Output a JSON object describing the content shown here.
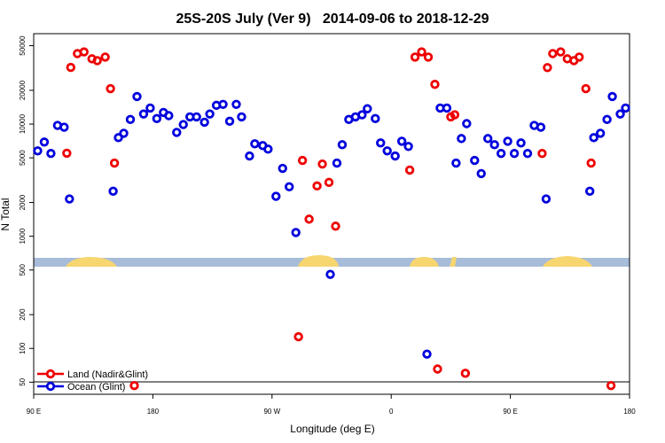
{
  "chart_data": {
    "type": "scatter",
    "title": "25S-20S July (Ver 9)   2014-09-06 to 2018-12-29",
    "x_label": "Longitude (deg E)",
    "y_label": "N Total",
    "log_y": true,
    "legend": "lower left",
    "xlim": [
      90,
      540
    ],
    "ylim": [
      39,
      64000
    ],
    "xticks": [
      {
        "value": 90,
        "label": "90 E"
      },
      {
        "value": 180,
        "label": "180"
      },
      {
        "value": 270,
        "label": "90 W"
      },
      {
        "value": 360,
        "label": "0"
      },
      {
        "value": 450,
        "label": "90 E"
      },
      {
        "value": 540,
        "label": "180"
      }
    ],
    "yticks": [
      50,
      100,
      200,
      500,
      1000,
      2000,
      5000,
      10000,
      20000,
      50000
    ],
    "series": [
      {
        "name": "Land (Nadir&Glint)",
        "color": "#ee0000",
        "x": [
          115,
          118,
          123,
          128,
          134,
          138,
          144,
          148,
          151,
          166,
          290,
          293,
          298,
          304,
          308,
          313,
          318,
          374,
          378,
          383,
          388,
          393,
          395,
          405,
          408,
          416,
          474,
          478,
          482,
          488,
          493,
          498,
          502,
          507,
          511,
          526
        ],
        "values": [
          5500,
          32000,
          42500,
          44000,
          38200,
          36800,
          39600,
          20700,
          4490,
          46.6,
          127,
          4740,
          1420,
          2810,
          4400,
          3020,
          1230,
          3890,
          39600,
          44000,
          39600,
          22600,
          65.5,
          11600,
          12100,
          60,
          5470,
          31900,
          42500,
          44000,
          38200,
          36800,
          39600,
          20700,
          4490,
          46.6
        ]
      },
      {
        "name": "Ocean (Glint)",
        "color": "#0000dd",
        "x": [
          93,
          98,
          103,
          108,
          113,
          117,
          150,
          154,
          158,
          163,
          168,
          173,
          178,
          183,
          188,
          192,
          198,
          203,
          208,
          213,
          219,
          223,
          228,
          233,
          238,
          243,
          247,
          253,
          257,
          263,
          267,
          273,
          278,
          283,
          288,
          314,
          319,
          323,
          328,
          333,
          338,
          342,
          348,
          352,
          357,
          363,
          368,
          373,
          387,
          397,
          402,
          409,
          413,
          417,
          423,
          428,
          433,
          438,
          443,
          448,
          453,
          458,
          463,
          468,
          473,
          477,
          510,
          513,
          518,
          523,
          527,
          533,
          537
        ],
        "values": [
          5770,
          6920,
          5470,
          9730,
          9380,
          2150,
          2520,
          7570,
          8280,
          11000,
          17600,
          12300,
          13900,
          11200,
          12700,
          11900,
          8430,
          9910,
          11600,
          11600,
          10400,
          12300,
          14700,
          15000,
          10600,
          15000,
          11600,
          5190,
          6670,
          6430,
          5980,
          2270,
          4030,
          2760,
          1080,
          457,
          4490,
          6550,
          11000,
          11600,
          12100,
          13700,
          11200,
          6790,
          5770,
          5190,
          7030,
          6320,
          89,
          13900,
          13900,
          4490,
          7430,
          10100,
          4740,
          3620,
          7430,
          6550,
          5470,
          7030,
          5470,
          6790,
          5470,
          9730,
          9380,
          2150,
          2520,
          7570,
          8280,
          11000,
          17600,
          12300,
          13900
        ]
      }
    ]
  }
}
